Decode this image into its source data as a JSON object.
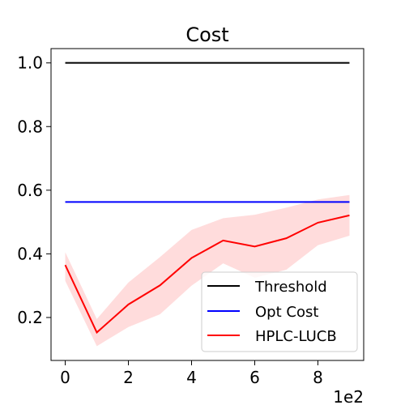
{
  "chart_data": {
    "type": "line",
    "title": "Cost",
    "xlabel": "",
    "ylabel": "",
    "x_offset_text": "1e2",
    "xlim": [
      -0.45,
      9.45
    ],
    "ylim": [
      0.065,
      1.045
    ],
    "xticks": [
      0,
      2,
      4,
      6,
      8
    ],
    "xtick_labels": [
      "0",
      "2",
      "4",
      "6",
      "8"
    ],
    "yticks": [
      0.2,
      0.4,
      0.6,
      0.8,
      1.0
    ],
    "ytick_labels": [
      "0.2",
      "0.4",
      "0.6",
      "0.8",
      "1.0"
    ],
    "grid": false,
    "legend_position": "lower-right",
    "series": [
      {
        "name": "Threshold",
        "color": "#000000",
        "x": [
          0,
          9
        ],
        "y": [
          1.0,
          1.0
        ]
      },
      {
        "name": "Opt Cost",
        "color": "#0000ff",
        "x": [
          0,
          9
        ],
        "y": [
          0.563,
          0.563
        ]
      },
      {
        "name": "HPLC-LUCB",
        "color": "#ff0000",
        "band_color": "#ffc0c0",
        "x": [
          0,
          1,
          2,
          3,
          4,
          5,
          6,
          7,
          8,
          9
        ],
        "y": [
          0.365,
          0.153,
          0.241,
          0.301,
          0.387,
          0.442,
          0.423,
          0.449,
          0.498,
          0.521
        ],
        "lower": [
          0.315,
          0.11,
          0.17,
          0.21,
          0.3,
          0.37,
          0.325,
          0.35,
          0.427,
          0.457
        ],
        "upper": [
          0.405,
          0.195,
          0.31,
          0.39,
          0.475,
          0.512,
          0.523,
          0.545,
          0.571,
          0.585
        ]
      }
    ]
  }
}
